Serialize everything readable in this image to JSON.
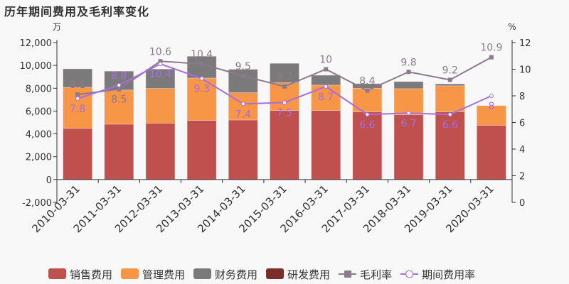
{
  "title": "历年期间费用及毛利率变化",
  "chart_data": {
    "type": "bar",
    "title": "历年期间费用及毛利率变化",
    "ylabel": "万",
    "y2label": "%",
    "ylim": [
      -2000,
      12000
    ],
    "y2lim": [
      0,
      12
    ],
    "yticks": [
      -2000,
      0,
      2000,
      4000,
      6000,
      8000,
      10000,
      12000
    ],
    "y2ticks": [
      0,
      2,
      4,
      6,
      8,
      10,
      12
    ],
    "categories": [
      "2010-03-31",
      "2011-03-31",
      "2012-03-31",
      "2013-03-31",
      "2014-03-31",
      "2015-03-31",
      "2016-03-31",
      "2017-03-31",
      "2018-03-31",
      "2019-03-31",
      "2020-03-31"
    ],
    "series": [
      {
        "name": "销售费用",
        "type": "bar",
        "color": "#c0504d",
        "values": [
          4480,
          4850,
          4930,
          5180,
          5220,
          6050,
          6050,
          5930,
          5680,
          5930,
          4750
        ]
      },
      {
        "name": "管理费用",
        "type": "bar",
        "color": "#f79646",
        "values": [
          3600,
          2990,
          3050,
          3710,
          2390,
          2430,
          2220,
          2070,
          2280,
          2280,
          1720
        ]
      },
      {
        "name": "财务费用",
        "type": "bar",
        "color": "#7a7a7a",
        "values": [
          1620,
          1660,
          1700,
          1910,
          2050,
          1700,
          870,
          400,
          620,
          170,
          0
        ]
      },
      {
        "name": "研发费用",
        "type": "bar",
        "color": "#7b2c2c",
        "values": [
          0,
          0,
          0,
          0,
          0,
          0,
          0,
          0,
          0,
          0,
          0
        ]
      },
      {
        "name": "毛利率",
        "type": "line",
        "axis": "right",
        "color": "#8b7a8b",
        "values": [
          8.1,
          8.5,
          10.6,
          10.4,
          9.5,
          8.7,
          10,
          8.4,
          9.8,
          9.2,
          10.9
        ]
      },
      {
        "name": "期间费用率",
        "type": "line",
        "axis": "right",
        "color": "#a86de0",
        "values": [
          7.8,
          8.8,
          10.4,
          9.3,
          7.4,
          7.5,
          8.7,
          6.6,
          6.7,
          6.6,
          8
        ]
      }
    ],
    "legend": "bottom"
  }
}
